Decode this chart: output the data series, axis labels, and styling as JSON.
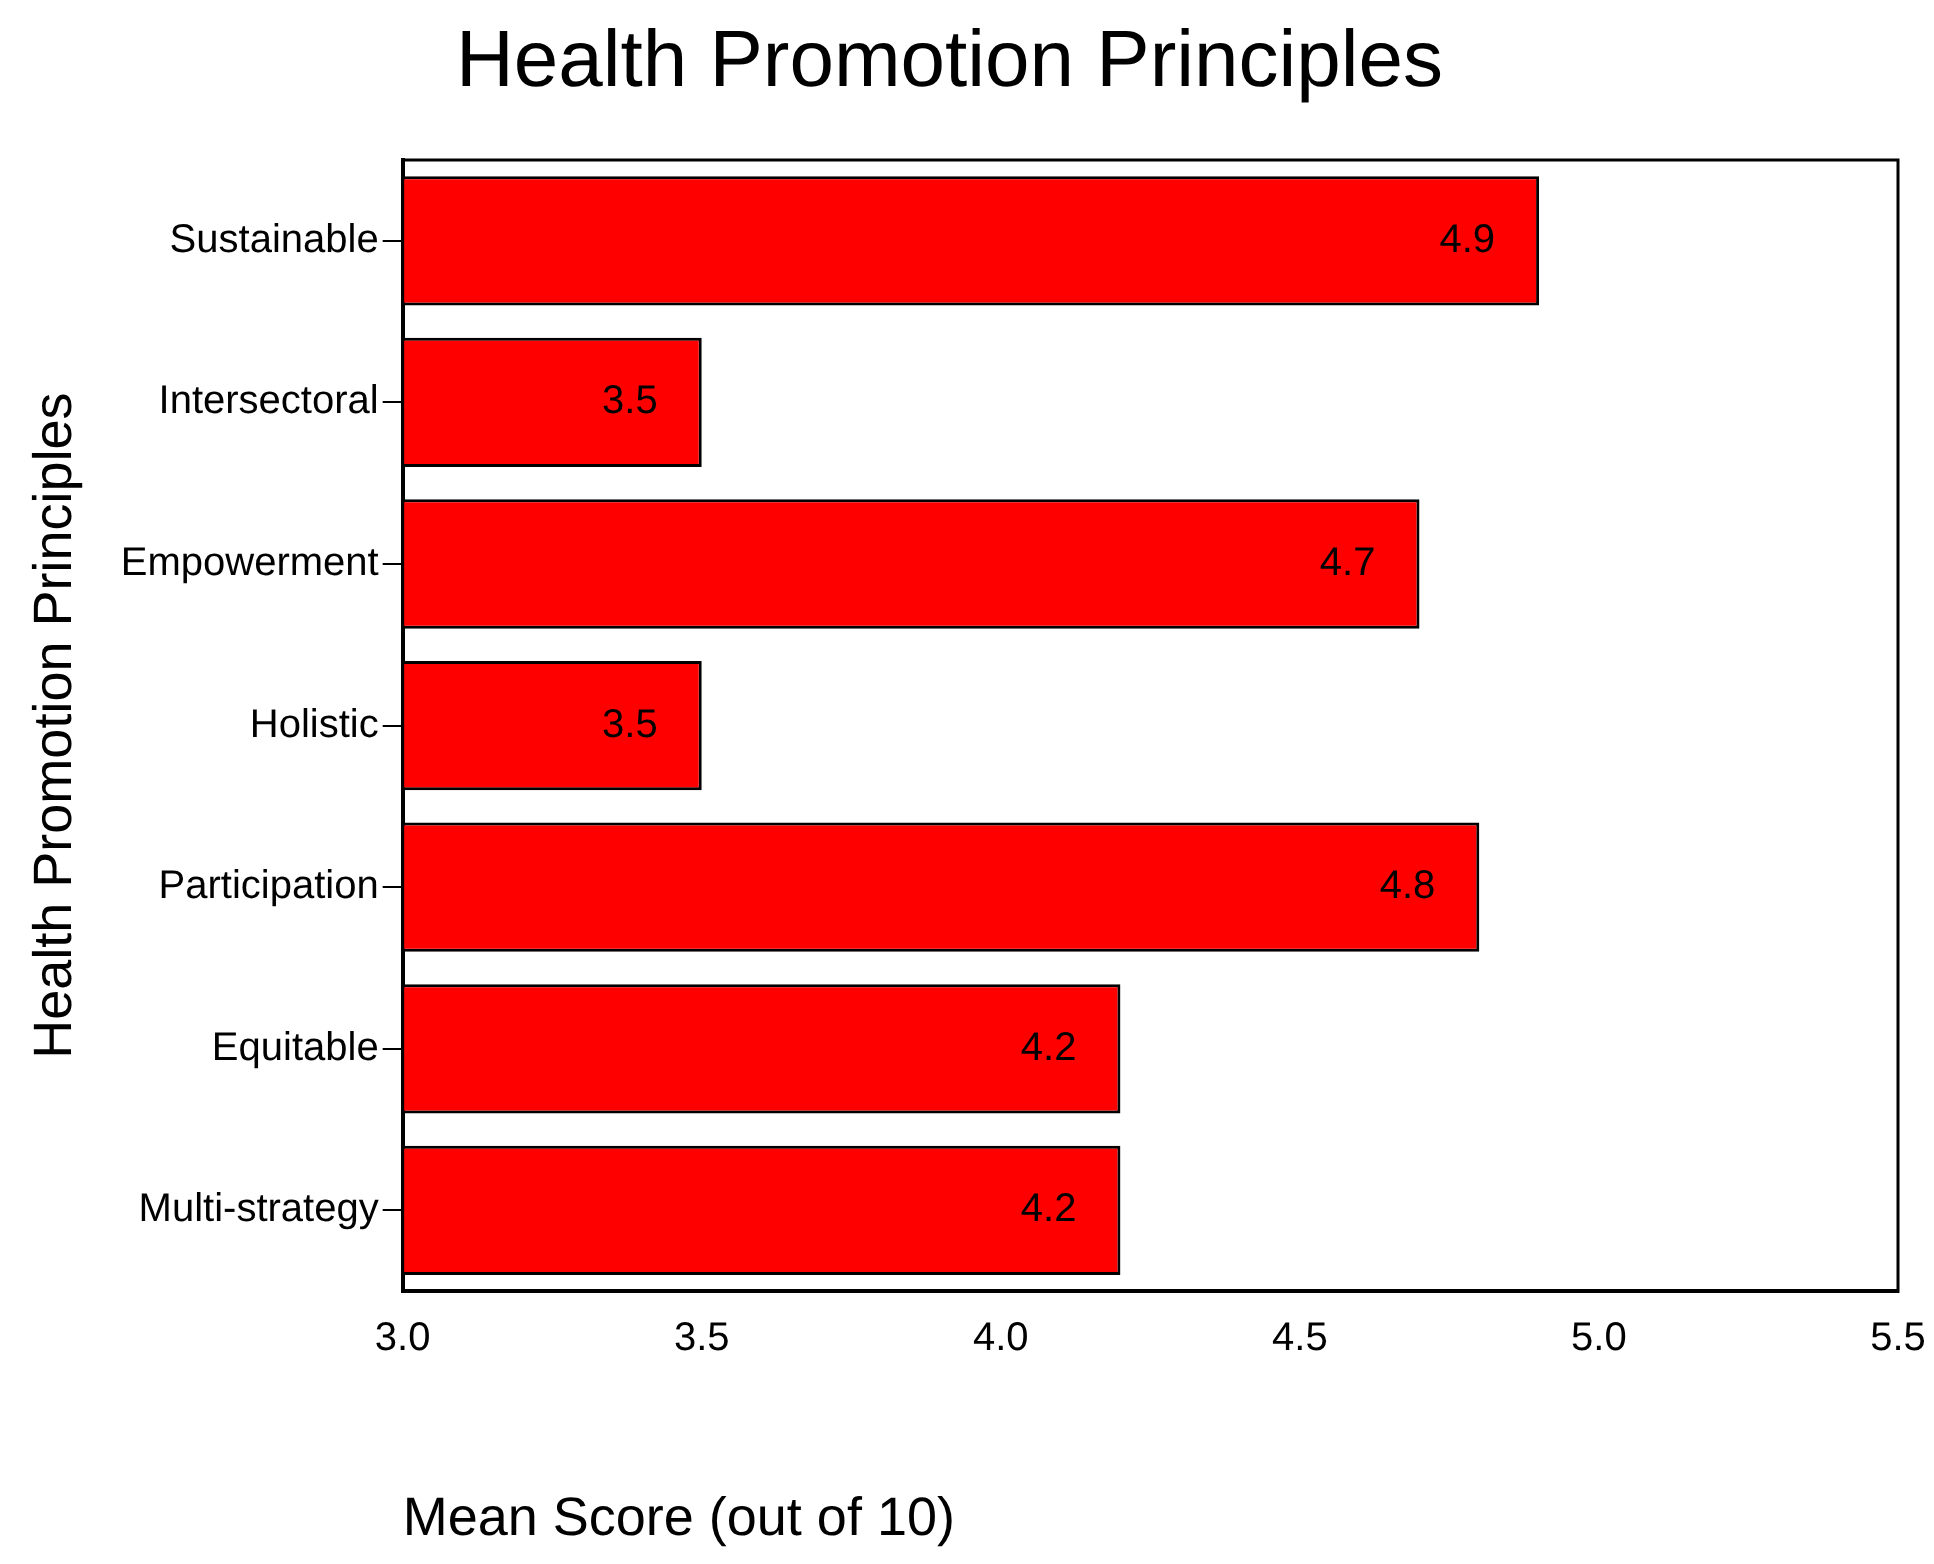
{
  "chart_data": {
    "type": "bar",
    "orientation": "horizontal",
    "title": "Health Promotion Principles",
    "xlabel": "Mean Score (out of 10)",
    "ylabel": "Health Promotion Principles",
    "categories": [
      "Sustainable",
      "Intersectoral",
      "Empowerment",
      "Holistic",
      "Participation",
      "Equitable",
      "Multi-strategy"
    ],
    "values": [
      4.9,
      3.5,
      4.7,
      3.5,
      4.8,
      4.2,
      4.2
    ],
    "color": "#ff0000",
    "xlim": [
      3,
      5.5
    ],
    "xticks": [
      {
        "value": 3,
        "label": "3.0"
      },
      {
        "value": 3.5,
        "label": "3.5"
      },
      {
        "value": 4,
        "label": "4.0"
      },
      {
        "value": 4.5,
        "label": "4.5"
      },
      {
        "value": 5,
        "label": "5.0"
      },
      {
        "value": 5.5,
        "label": "5.5"
      }
    ],
    "data_labels": true
  }
}
